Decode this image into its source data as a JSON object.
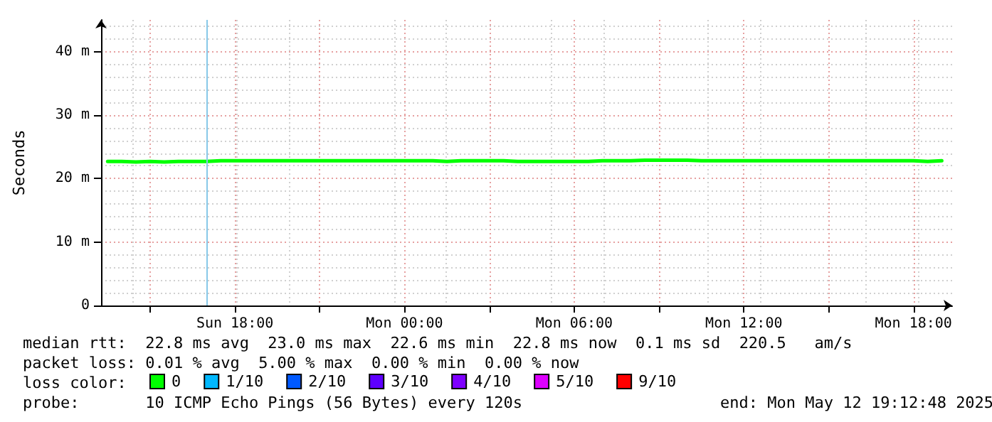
{
  "chart_data": {
    "type": "line",
    "ylabel": "Seconds",
    "x": [
      "2025-05-11T13:30",
      "2025-05-11T14:00",
      "2025-05-11T14:30",
      "2025-05-11T15:00",
      "2025-05-11T15:30",
      "2025-05-11T16:00",
      "2025-05-11T16:30",
      "2025-05-11T17:00",
      "2025-05-11T17:30",
      "2025-05-11T18:00",
      "2025-05-11T18:30",
      "2025-05-11T19:00",
      "2025-05-11T19:30",
      "2025-05-11T20:00",
      "2025-05-11T20:30",
      "2025-05-11T21:00",
      "2025-05-11T21:30",
      "2025-05-11T22:00",
      "2025-05-11T22:30",
      "2025-05-11T23:00",
      "2025-05-11T23:30",
      "2025-05-12T00:00",
      "2025-05-12T00:30",
      "2025-05-12T01:00",
      "2025-05-12T01:30",
      "2025-05-12T02:00",
      "2025-05-12T02:30",
      "2025-05-12T03:00",
      "2025-05-12T03:30",
      "2025-05-12T04:00",
      "2025-05-12T04:30",
      "2025-05-12T05:00",
      "2025-05-12T05:30",
      "2025-05-12T06:00",
      "2025-05-12T06:30",
      "2025-05-12T07:00",
      "2025-05-12T07:30",
      "2025-05-12T08:00",
      "2025-05-12T08:30",
      "2025-05-12T09:00",
      "2025-05-12T09:30",
      "2025-05-12T10:00",
      "2025-05-12T10:30",
      "2025-05-12T11:00",
      "2025-05-12T11:30",
      "2025-05-12T12:00",
      "2025-05-12T12:30",
      "2025-05-12T13:00",
      "2025-05-12T13:30",
      "2025-05-12T14:00",
      "2025-05-12T14:30",
      "2025-05-12T15:00",
      "2025-05-12T15:30",
      "2025-05-12T16:00",
      "2025-05-12T16:30",
      "2025-05-12T17:00",
      "2025-05-12T17:30",
      "2025-05-12T18:00",
      "2025-05-12T18:30",
      "2025-05-12T19:00"
    ],
    "series": [
      {
        "name": "0",
        "color": "#00ff00",
        "values": [
          22.7,
          22.7,
          22.6,
          22.7,
          22.6,
          22.7,
          22.7,
          22.7,
          22.8,
          22.8,
          22.8,
          22.8,
          22.8,
          22.8,
          22.8,
          22.8,
          22.8,
          22.8,
          22.8,
          22.8,
          22.8,
          22.8,
          22.8,
          22.8,
          22.7,
          22.8,
          22.8,
          22.8,
          22.8,
          22.7,
          22.7,
          22.7,
          22.7,
          22.7,
          22.7,
          22.8,
          22.8,
          22.8,
          22.9,
          22.9,
          22.9,
          22.9,
          22.8,
          22.8,
          22.8,
          22.8,
          22.8,
          22.8,
          22.8,
          22.8,
          22.8,
          22.8,
          22.8,
          22.8,
          22.8,
          22.8,
          22.8,
          22.8,
          22.7,
          22.8
        ]
      },
      {
        "name": "1/10",
        "color": "#00b8ff",
        "values": [
          null,
          null,
          null,
          null,
          null,
          null,
          null,
          null,
          null,
          null,
          null,
          null,
          null,
          null,
          null,
          null,
          null,
          null,
          null,
          null,
          null,
          null,
          null,
          null,
          null,
          null,
          null,
          null,
          null,
          null,
          null,
          null,
          null,
          null,
          null,
          null,
          null,
          null,
          null,
          null,
          null,
          null,
          null,
          null,
          null,
          null,
          null,
          null,
          null,
          null,
          null,
          null,
          null,
          null,
          null,
          null,
          null,
          null,
          null,
          null
        ]
      },
      {
        "name": "2/10",
        "color": "#0059ff",
        "values": [
          null,
          null,
          null,
          null,
          null,
          null,
          null,
          null,
          null,
          null,
          null,
          null,
          null,
          null,
          null,
          null,
          null,
          null,
          null,
          null,
          null,
          null,
          null,
          null,
          null,
          null,
          null,
          null,
          null,
          null,
          null,
          null,
          null,
          null,
          null,
          null,
          null,
          null,
          null,
          null,
          null,
          null,
          null,
          null,
          null,
          null,
          null,
          null,
          null,
          null,
          null,
          null,
          null,
          null,
          null,
          null,
          null,
          null,
          null,
          null
        ]
      },
      {
        "name": "3/10",
        "color": "#5e00ff",
        "values": [
          null,
          null,
          null,
          null,
          null,
          null,
          null,
          null,
          null,
          null,
          null,
          null,
          null,
          null,
          null,
          null,
          null,
          null,
          null,
          null,
          null,
          null,
          null,
          null,
          null,
          null,
          null,
          null,
          null,
          null,
          null,
          null,
          null,
          null,
          null,
          null,
          null,
          null,
          null,
          null,
          null,
          null,
          null,
          null,
          null,
          null,
          null,
          null,
          null,
          null,
          null,
          null,
          null,
          null,
          null,
          null,
          null,
          null,
          null,
          null
        ]
      },
      {
        "name": "4/10",
        "color": "#7e00ff",
        "values": [
          null,
          null,
          null,
          null,
          null,
          null,
          null,
          null,
          null,
          null,
          null,
          null,
          null,
          null,
          null,
          null,
          null,
          null,
          null,
          null,
          null,
          null,
          null,
          null,
          null,
          null,
          null,
          null,
          null,
          null,
          null,
          null,
          null,
          null,
          null,
          null,
          null,
          null,
          null,
          null,
          null,
          null,
          null,
          null,
          null,
          null,
          null,
          null,
          null,
          null,
          null,
          null,
          null,
          null,
          null,
          null,
          null,
          null,
          null,
          null
        ]
      },
      {
        "name": "5/10",
        "color": "#dd00ff",
        "values": [
          null,
          null,
          null,
          null,
          null,
          null,
          null,
          null,
          null,
          null,
          null,
          null,
          null,
          null,
          null,
          null,
          null,
          null,
          null,
          null,
          null,
          null,
          null,
          null,
          null,
          null,
          null,
          null,
          null,
          null,
          null,
          null,
          null,
          null,
          null,
          null,
          null,
          null,
          null,
          null,
          null,
          null,
          null,
          null,
          null,
          null,
          null,
          null,
          null,
          null,
          null,
          null,
          null,
          null,
          null,
          null,
          null,
          null,
          null,
          null
        ]
      },
      {
        "name": "9/10",
        "color": "#ff0000",
        "values": [
          null,
          null,
          null,
          null,
          null,
          null,
          null,
          null,
          null,
          null,
          null,
          null,
          null,
          null,
          null,
          null,
          null,
          null,
          null,
          null,
          null,
          null,
          null,
          null,
          null,
          null,
          null,
          null,
          null,
          null,
          null,
          null,
          null,
          null,
          null,
          null,
          null,
          null,
          null,
          null,
          null,
          null,
          null,
          null,
          null,
          null,
          null,
          null,
          null,
          null,
          null,
          null,
          null,
          null,
          null,
          null,
          null,
          null,
          null,
          null
        ]
      }
    ],
    "xlim": [
      "2025-05-11T13:16",
      "2025-05-12T19:22"
    ],
    "xticks": [
      {
        "value": "2025-05-11T15:00",
        "label": null
      },
      {
        "value": "2025-05-11T18:00",
        "label": "Sun 18:00"
      },
      {
        "value": "2025-05-11T21:00",
        "label": null
      },
      {
        "value": "2025-05-12T00:00",
        "label": "Mon 00:00"
      },
      {
        "value": "2025-05-12T03:00",
        "label": null
      },
      {
        "value": "2025-05-12T06:00",
        "label": "Mon 06:00"
      },
      {
        "value": "2025-05-12T09:00",
        "label": null
      },
      {
        "value": "2025-05-12T12:00",
        "label": "Mon 12:00"
      },
      {
        "value": "2025-05-12T15:00",
        "label": null
      },
      {
        "value": "2025-05-12T18:00",
        "label": "Mon 18:00"
      }
    ],
    "ylim": [
      0,
      45
    ],
    "yticks": [
      0,
      {
        "value": 10,
        "label": "10 m"
      },
      {
        "value": 20,
        "label": "20 m"
      },
      {
        "value": 30,
        "label": "30 m"
      },
      {
        "value": 40,
        "label": "40 m"
      }
    ],
    "ref_lines": [
      {
        "axis": "x",
        "value": "2025-05-11T17:00",
        "label": null,
        "color": "#88c8e8"
      }
    ],
    "grid": true,
    "legend": "bottom",
    "marker": "none",
    "line_style": "solid",
    "annotations": [
      "median rtt:  22.8 ms avg  23.0 ms max  22.6 ms min  22.8 ms now  0.1 ms sd  220.5   am/s",
      "packet loss: 0.01 % avg  5.00 % max  0.00 % min  0.00 % now",
      "loss color:",
      "probe:       10 ICMP Echo Pings (56 Bytes) every 120s",
      "end: Mon May 12 19:12:48 2025"
    ]
  }
}
